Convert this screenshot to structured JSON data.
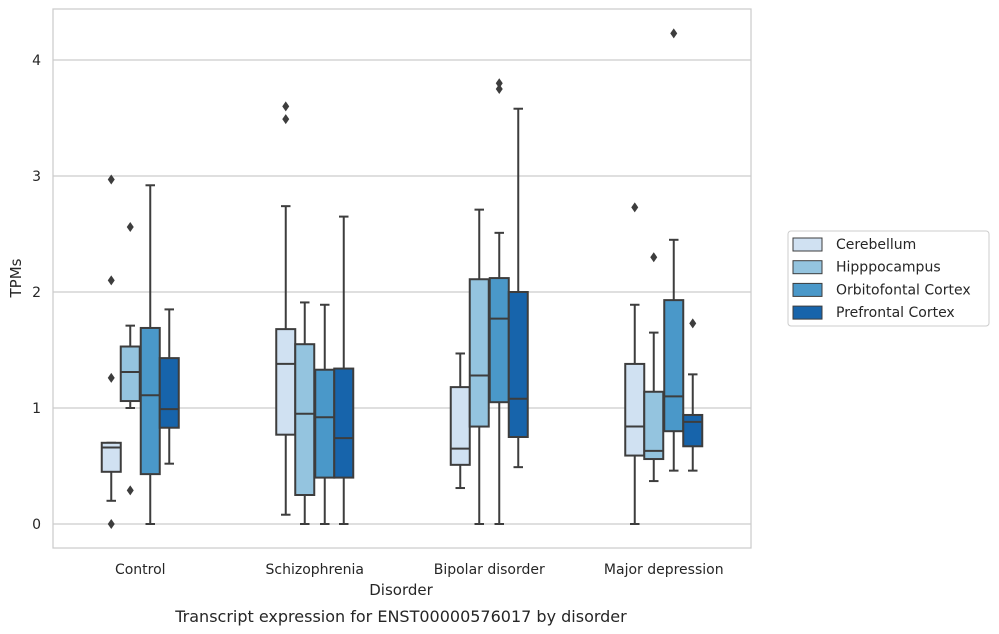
{
  "chart_data": {
    "type": "box",
    "title": "",
    "caption": "Transcript expression for ENST00000576017 by disorder",
    "xlabel": "Disorder",
    "ylabel": "TPMs",
    "ylim": [
      -0.2,
      4.45
    ],
    "yticks": [
      "0",
      "1",
      "2",
      "3",
      "4"
    ],
    "categories": [
      "Control",
      "Schizophrenia",
      "Bipolar disorder",
      "Major depression"
    ],
    "grid": "horizontal",
    "legend_position": "right",
    "series": [
      {
        "name": "Cerebellum",
        "color": "#d0e1f2",
        "boxes": [
          {
            "whislo": 0.2,
            "q1": 0.45,
            "med": 0.66,
            "q3": 0.7,
            "whishi": 0.7,
            "fliers": [
              0.0,
              1.26,
              2.1,
              2.97
            ]
          },
          {
            "whislo": 0.08,
            "q1": 0.77,
            "med": 1.38,
            "q3": 1.68,
            "whishi": 2.74,
            "fliers": [
              3.49,
              3.6
            ]
          },
          {
            "whislo": 0.31,
            "q1": 0.51,
            "med": 0.65,
            "q3": 1.18,
            "whishi": 1.47,
            "fliers": []
          },
          {
            "whislo": 0.0,
            "q1": 0.59,
            "med": 0.84,
            "q3": 1.38,
            "whishi": 1.89,
            "fliers": [
              2.73
            ]
          }
        ]
      },
      {
        "name": "Hipppocampus",
        "color": "#94c4df",
        "boxes": [
          {
            "whislo": 1.0,
            "q1": 1.06,
            "med": 1.31,
            "q3": 1.53,
            "whishi": 1.71,
            "fliers": [
              0.29,
              2.56
            ]
          },
          {
            "whislo": 0.0,
            "q1": 0.25,
            "med": 0.95,
            "q3": 1.55,
            "whishi": 1.91,
            "fliers": []
          },
          {
            "whislo": 0.0,
            "q1": 0.84,
            "med": 1.28,
            "q3": 2.11,
            "whishi": 2.71,
            "fliers": []
          },
          {
            "whislo": 0.37,
            "q1": 0.56,
            "med": 0.63,
            "q3": 1.14,
            "whishi": 1.65,
            "fliers": [
              2.3
            ]
          }
        ]
      },
      {
        "name": "Orbitofontal Cortex",
        "color": "#4a98c9",
        "boxes": [
          {
            "whislo": 0.0,
            "q1": 0.43,
            "med": 1.11,
            "q3": 1.69,
            "whishi": 2.92,
            "fliers": []
          },
          {
            "whislo": 0.0,
            "q1": 0.4,
            "med": 0.92,
            "q3": 1.33,
            "whishi": 1.89,
            "fliers": []
          },
          {
            "whislo": 0.0,
            "q1": 1.05,
            "med": 1.77,
            "q3": 2.12,
            "whishi": 2.51,
            "fliers": [
              3.75,
              3.8
            ]
          },
          {
            "whislo": 0.46,
            "q1": 0.8,
            "med": 1.1,
            "q3": 1.93,
            "whishi": 2.45,
            "fliers": [
              4.23
            ]
          }
        ]
      },
      {
        "name": "Prefrontal Cortex",
        "color": "#1764ab",
        "boxes": [
          {
            "whislo": 0.52,
            "q1": 0.83,
            "med": 0.99,
            "q3": 1.43,
            "whishi": 1.85,
            "fliers": []
          },
          {
            "whislo": 0.0,
            "q1": 0.4,
            "med": 0.74,
            "q3": 1.34,
            "whishi": 2.65,
            "fliers": []
          },
          {
            "whislo": 0.49,
            "q1": 0.75,
            "med": 1.08,
            "q3": 2.0,
            "whishi": 3.58,
            "fliers": []
          },
          {
            "whislo": 0.46,
            "q1": 0.67,
            "med": 0.88,
            "q3": 0.94,
            "whishi": 1.29,
            "fliers": [
              1.73
            ]
          }
        ]
      }
    ]
  }
}
